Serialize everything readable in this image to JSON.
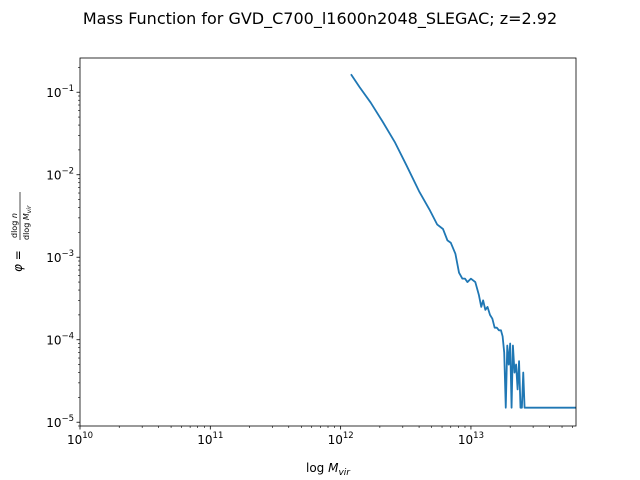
{
  "chart_data": {
    "type": "line",
    "title": "Mass Function for GVD_C700_l1600n2048_SLEGAC; z=2.92",
    "xlabel": "log M_vir",
    "ylabel": "φ = dlog n / dlog M_vir",
    "xscale": "log",
    "yscale": "log",
    "xlim": [
      10000000000.0,
      64000000000000.0
    ],
    "ylim": [
      9e-06,
      0.26
    ],
    "x_ticks": [
      {
        "value": 10000000000.0,
        "base": "10",
        "exp": "10"
      },
      {
        "value": 100000000000.0,
        "base": "10",
        "exp": "11"
      },
      {
        "value": 1000000000000.0,
        "base": "10",
        "exp": "12"
      },
      {
        "value": 10000000000000.0,
        "base": "10",
        "exp": "13"
      }
    ],
    "y_ticks": [
      {
        "value": 1e-05,
        "base": "10",
        "exp": "−5"
      },
      {
        "value": 0.0001,
        "base": "10",
        "exp": "−4"
      },
      {
        "value": 0.001,
        "base": "10",
        "exp": "−3"
      },
      {
        "value": 0.01,
        "base": "10",
        "exp": "−2"
      },
      {
        "value": 0.1,
        "base": "10",
        "exp": "−1"
      }
    ],
    "grid": false,
    "legend": "none",
    "series": [
      {
        "color": "#1f77b4",
        "x": [
          1200000000000.0,
          1400000000000.0,
          1700000000000.0,
          2100000000000.0,
          2600000000000.0,
          3200000000000.0,
          4000000000000.0,
          4800000000000.0,
          5500000000000.0,
          6100000000000.0,
          6600000000000.0,
          7000000000000.0,
          7600000000000.0,
          8100000000000.0,
          8600000000000.0,
          9000000000000.0,
          9400000000000.0,
          10000000000000.0,
          10800000000000.0,
          11500000000000.0,
          12000000000000.0,
          12400000000000.0,
          12900000000000.0,
          13400000000000.0,
          14000000000000.0,
          14600000000000.0,
          15200000000000.0,
          15800000000000.0,
          16400000000000.0,
          17000000000000.0,
          17500000000000.0,
          18000000000000.0,
          18500000000000.0,
          19000000000000.0,
          19500000000000.0,
          20000000000000.0,
          20500000000000.0,
          21000000000000.0,
          21600000000000.0,
          22200000000000.0,
          22800000000000.0,
          23400000000000.0,
          24000000000000.0,
          24600000000000.0,
          25200000000000.0,
          25800000000000.0,
          27000000000000.0,
          35000000000000.0,
          50000000000000.0,
          64000000000000.0
        ],
        "y": [
          0.165,
          0.115,
          0.075,
          0.044,
          0.025,
          0.013,
          0.0063,
          0.0038,
          0.0025,
          0.0022,
          0.0016,
          0.0015,
          0.0011,
          0.00065,
          0.00055,
          0.00055,
          0.0005,
          0.00055,
          0.0005,
          0.00035,
          0.00025,
          0.0003,
          0.00023,
          0.00025,
          0.0002,
          0.00018,
          0.00014,
          0.00014,
          0.00013,
          0.00013,
          0.00011,
          7e-05,
          1.5e-05,
          8.5e-05,
          5e-05,
          9e-05,
          1.5e-05,
          8.5e-05,
          4e-05,
          5e-05,
          2.5e-05,
          5.5e-05,
          1.5e-05,
          1.5e-05,
          4e-05,
          1.5e-05,
          1.5e-05,
          1.5e-05,
          1.5e-05,
          1.5e-05
        ]
      }
    ]
  }
}
